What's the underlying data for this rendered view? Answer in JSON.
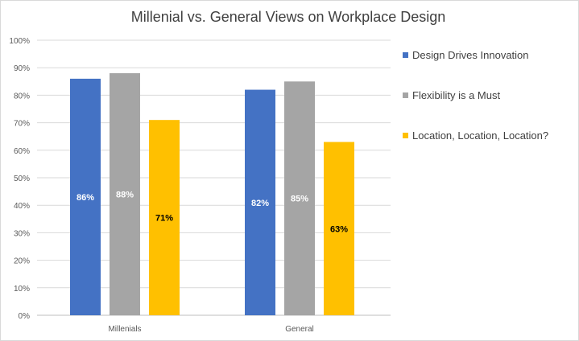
{
  "chart_data": {
    "type": "bar",
    "title": "Millenial  vs. General Views on Workplace Design",
    "categories": [
      "Millenials",
      "General"
    ],
    "series": [
      {
        "name": "Design Drives Innovation",
        "values": [
          86,
          82
        ],
        "labels": [
          "86%",
          "82%"
        ],
        "color": "#4472C4",
        "label_color": "#ffffff"
      },
      {
        "name": "Flexibility is a Must",
        "values": [
          88,
          85
        ],
        "labels": [
          "88%",
          "85%"
        ],
        "color": "#A5A5A5",
        "label_color": "#ffffff"
      },
      {
        "name": "Location, Location, Location?",
        "values": [
          71,
          63
        ],
        "labels": [
          "71%",
          "63%"
        ],
        "color": "#FFC000",
        "label_color": "#000000"
      }
    ],
    "ylim": [
      0,
      100
    ],
    "yticks": [
      "0%",
      "10%",
      "20%",
      "30%",
      "40%",
      "50%",
      "60%",
      "70%",
      "80%",
      "90%",
      "100%"
    ],
    "grid": true,
    "legend": "right"
  }
}
